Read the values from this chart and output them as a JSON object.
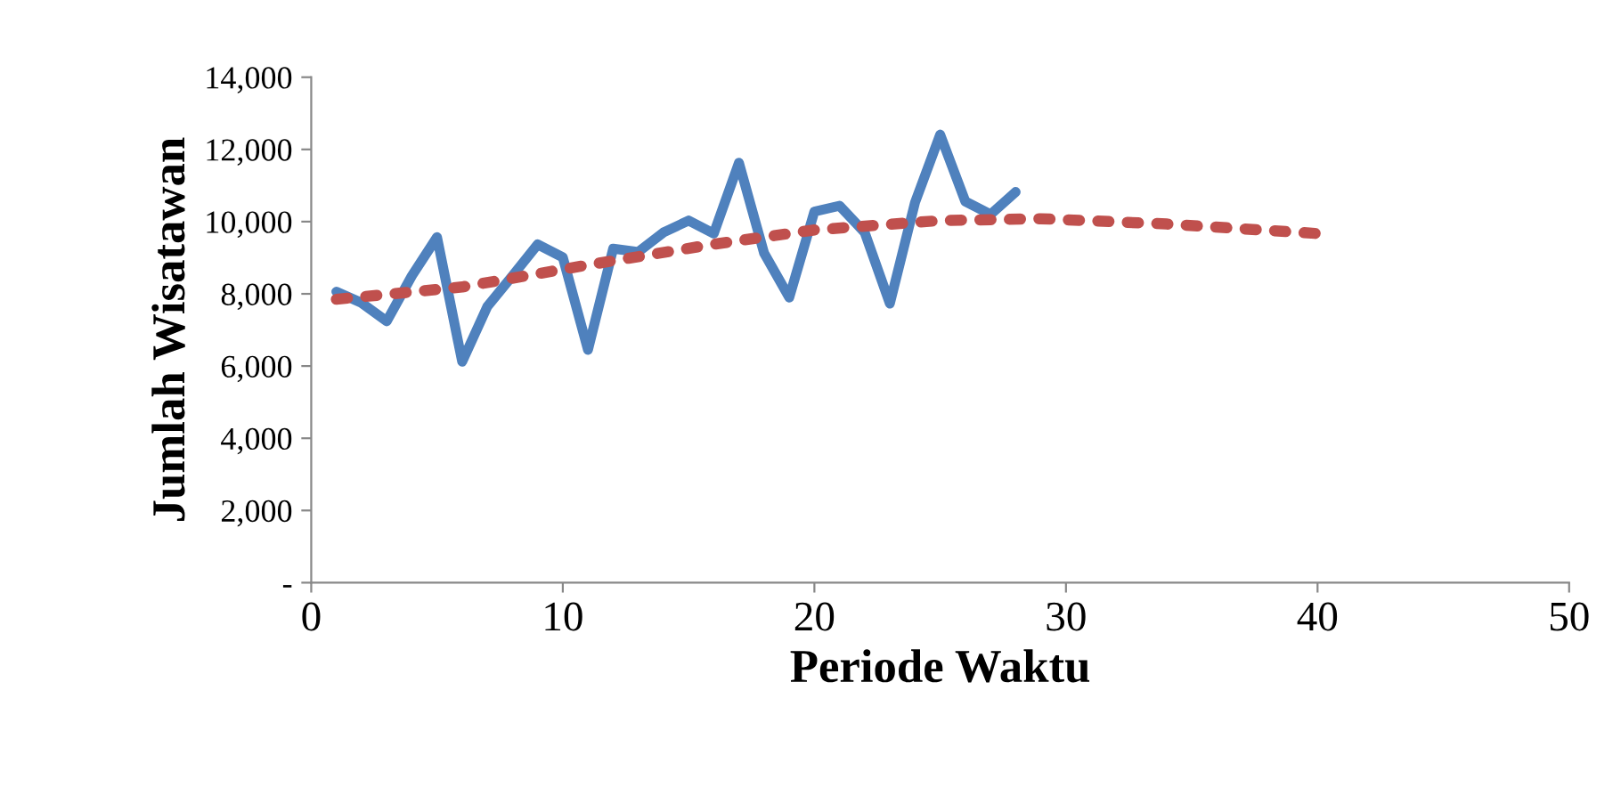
{
  "chart_data": {
    "type": "line",
    "xlabel": "Periode Waktu",
    "ylabel": "Jumlah Wisatawan",
    "xlim": [
      0,
      50
    ],
    "xticks": [
      0,
      10,
      20,
      30,
      40,
      50
    ],
    "ylim": [
      0,
      14000
    ],
    "yticks": [
      {
        "value": 0,
        "label": "-"
      },
      {
        "value": 2000,
        "label": "2,000"
      },
      {
        "value": 4000,
        "label": "4,000"
      },
      {
        "value": 6000,
        "label": "6,000"
      },
      {
        "value": 8000,
        "label": "8,000"
      },
      {
        "value": 10000,
        "label": "10,000"
      },
      {
        "value": 12000,
        "label": "12,000"
      },
      {
        "value": 14000,
        "label": "14,000"
      }
    ],
    "grid": false,
    "legend": false,
    "series": [
      {
        "color": "#4f81bd",
        "line_style": "solid",
        "x": [
          1,
          2,
          3,
          4,
          5,
          6,
          7,
          8,
          9,
          10,
          11,
          12,
          13,
          14,
          15,
          16,
          17,
          18,
          19,
          20,
          21,
          22,
          23,
          24,
          25,
          26,
          27,
          28
        ],
        "values": [
          8060,
          7750,
          7240,
          8500,
          9570,
          6120,
          7650,
          8500,
          9370,
          9010,
          6450,
          9250,
          9160,
          9700,
          10030,
          9670,
          11630,
          9130,
          7900,
          10280,
          10440,
          9700,
          7730,
          10530,
          12410,
          10560,
          10200,
          10820
        ]
      },
      {
        "color": "#c0504d",
        "line_style": "dotted",
        "x": [
          1,
          6,
          11,
          16,
          20,
          25,
          29,
          34,
          40
        ],
        "values": [
          7850,
          8190,
          8800,
          9375,
          9770,
          10030,
          10080,
          9935,
          9670
        ]
      }
    ]
  }
}
